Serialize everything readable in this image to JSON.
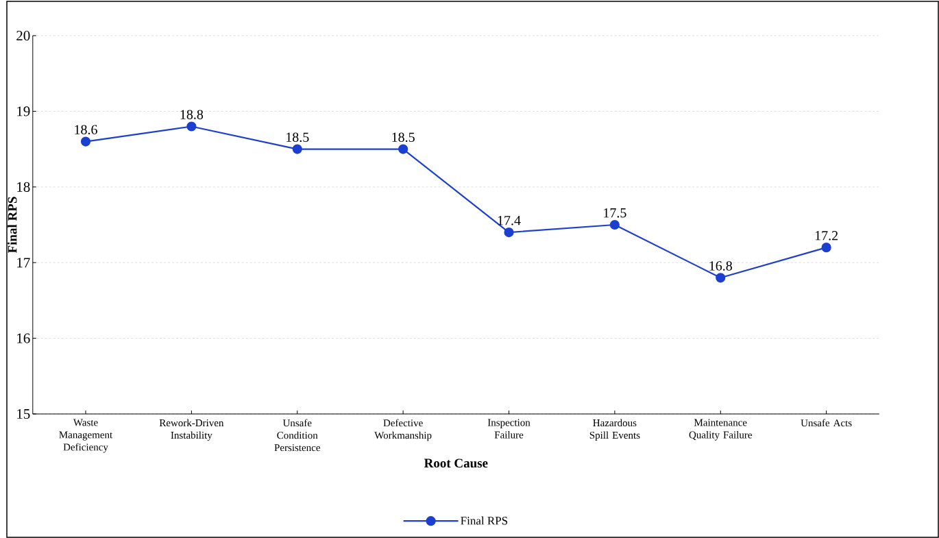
{
  "chart_data": {
    "type": "line",
    "xlabel": "Root Cause",
    "ylabel": "Final RPS",
    "categories": [
      "Waste Management Deficiency",
      "Rework-Driven Instability",
      "Unsafe Condition Persistence",
      "Defective Workmanship",
      "Inspection Failure",
      "Hazardous Spill Events",
      "Maintenance Quality Failure",
      "Unsafe Acts"
    ],
    "series": [
      {
        "name": "Final RPS",
        "color": "#1c3fd0",
        "values": [
          18.6,
          18.8,
          18.5,
          18.5,
          17.4,
          17.5,
          16.8,
          17.2
        ]
      }
    ],
    "ylim": [
      15,
      20
    ],
    "yticks": [
      15,
      16,
      17,
      18,
      19,
      20
    ],
    "grid": "y",
    "legend": "bottom",
    "marker": "circle",
    "line_style": "solid",
    "data_labels": true
  }
}
